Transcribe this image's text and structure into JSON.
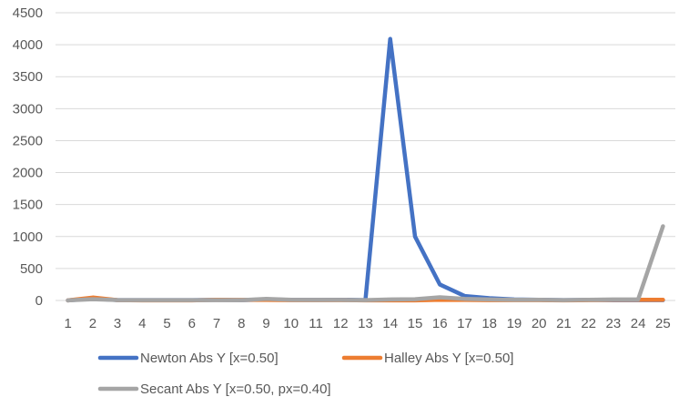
{
  "chart_data": {
    "type": "line",
    "title": "",
    "xlabel": "",
    "ylabel": "",
    "x": [
      1,
      2,
      3,
      4,
      5,
      6,
      7,
      8,
      9,
      10,
      11,
      12,
      13,
      14,
      15,
      16,
      17,
      18,
      19,
      20,
      21,
      22,
      23,
      24,
      25
    ],
    "ylim": [
      0,
      4500
    ],
    "yticks": [
      0,
      500,
      1000,
      1500,
      2000,
      2500,
      3000,
      3500,
      4000,
      4500
    ],
    "grid": true,
    "legend_position": "bottom",
    "series": [
      {
        "name": "Newton Abs Y  [x=0.50]",
        "color": "#4472c4",
        "values": [
          2,
          30,
          5,
          5,
          5,
          5,
          8,
          5,
          15,
          8,
          8,
          12,
          5,
          4090,
          1000,
          250,
          70,
          35,
          15,
          10,
          5,
          8,
          5,
          5,
          5
        ]
      },
      {
        "name": "Halley Abs Y  [x=0.50]",
        "color": "#ed7d31",
        "values": [
          2,
          45,
          5,
          2,
          2,
          2,
          12,
          8,
          8,
          5,
          5,
          5,
          2,
          2,
          2,
          10,
          8,
          5,
          5,
          5,
          2,
          5,
          12,
          12,
          12
        ]
      },
      {
        "name": "Secant Abs Y  [x=0.50, px=0.40]",
        "color": "#a5a5a5",
        "values": [
          2,
          20,
          5,
          5,
          5,
          5,
          5,
          5,
          25,
          10,
          8,
          8,
          5,
          15,
          20,
          50,
          25,
          15,
          10,
          10,
          5,
          12,
          15,
          15,
          1160
        ]
      }
    ]
  }
}
